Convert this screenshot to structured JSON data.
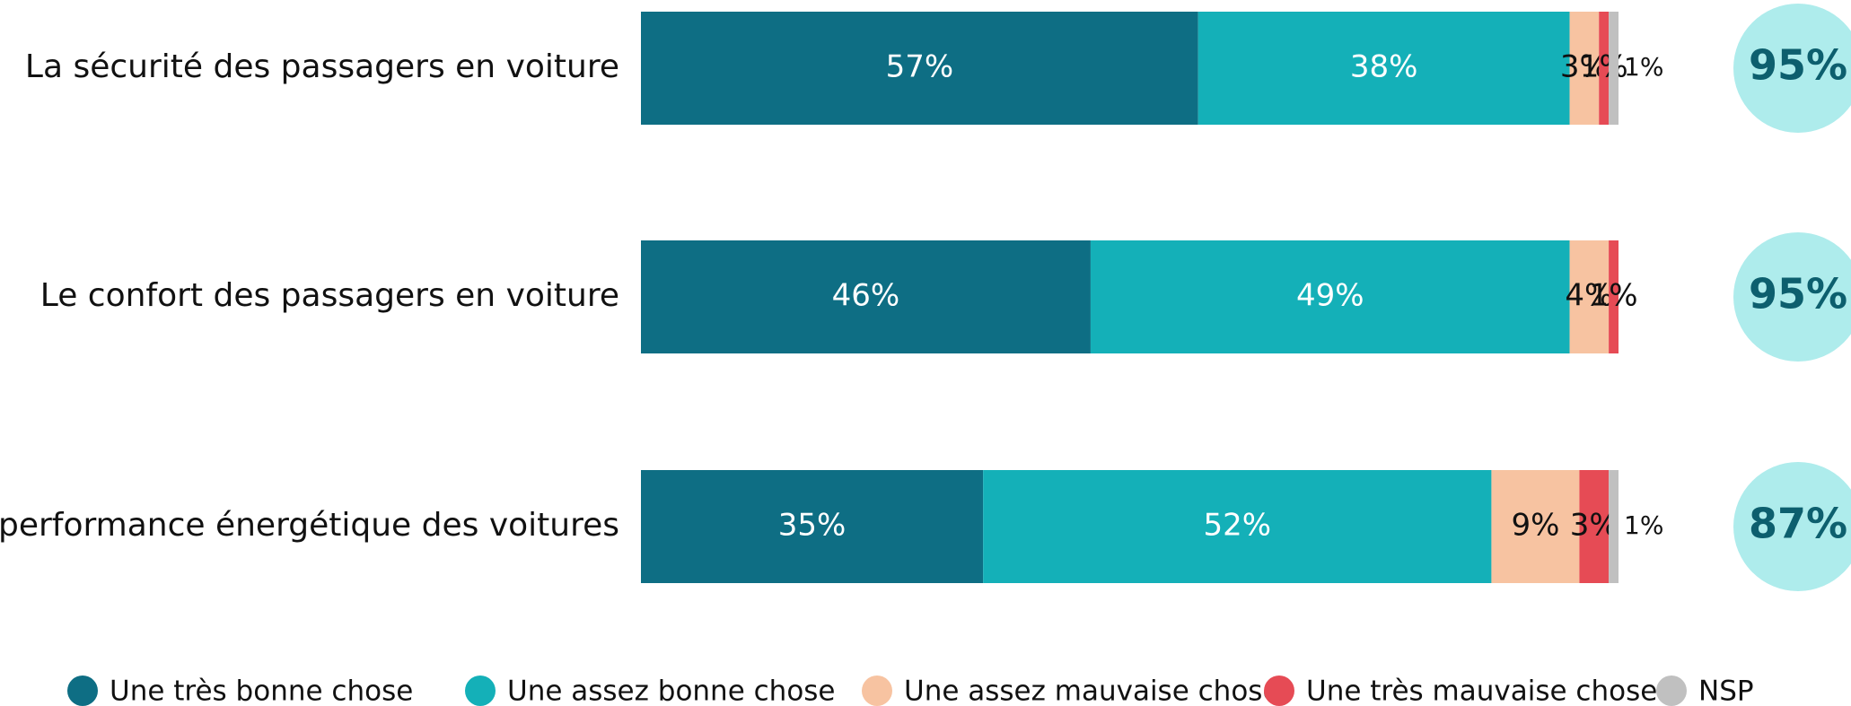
{
  "chart_data": {
    "type": "stacked-bar-horizontal",
    "categories": [
      "La sécurité des passagers en voiture",
      "Le confort des passagers en voiture",
      "La performance énergétique des voitures"
    ],
    "xlim": [
      0,
      100
    ],
    "series": [
      {
        "name": "Une très bonne chose",
        "color": "#0e6e84",
        "values": [
          57,
          46,
          35
        ],
        "value_labels": [
          "57%",
          "46%",
          "35%"
        ]
      },
      {
        "name": "Une assez bonne chose",
        "color": "#14b0b8",
        "values": [
          38,
          49,
          52
        ],
        "value_labels": [
          "38%",
          "49%",
          "52%"
        ]
      },
      {
        "name": "Une assez mauvaise chose",
        "color": "#f7c3a1",
        "values": [
          3,
          4,
          9
        ],
        "value_labels": [
          "3%",
          "4%",
          "9%"
        ]
      },
      {
        "name": "Une très mauvaise chose",
        "color": "#e64b55",
        "values": [
          1,
          1,
          3
        ],
        "value_labels": [
          "1%",
          "1%",
          "3%"
        ]
      },
      {
        "name": "NSP",
        "color": "#c0c0c0",
        "values": [
          1,
          0,
          1
        ],
        "value_labels": [
          "1%",
          null,
          "1%"
        ]
      }
    ],
    "totals": {
      "color": "#aeecec",
      "values": [
        95,
        95,
        87
      ],
      "value_labels": [
        "95%",
        "95%",
        "87%"
      ]
    }
  }
}
